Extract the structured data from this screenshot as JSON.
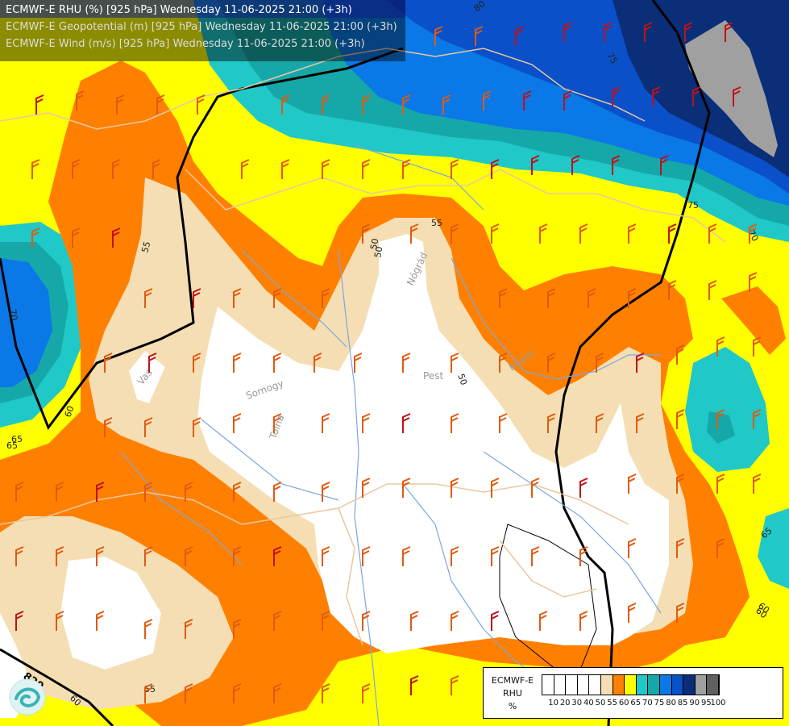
{
  "header": {
    "line1": "ECMWF-E RHU (%) [925 hPa] Wednesday 11-06-2025 21:00 (+3h)",
    "line2": "ECMWF-E Geopotential (m) [925 hPa] Wednesday 11-06-2025 21:00 (+3h)",
    "line3": "ECMWF-E Wind (m/s) [925 hPa] Wednesday 11-06-2025 21:00 (+3h)"
  },
  "legend": {
    "title1": "ECMWF-E",
    "title2": "RHU",
    "title3": "%",
    "ticks": [
      "10",
      "20",
      "30",
      "40",
      "50",
      "55",
      "60",
      "65",
      "70",
      "75",
      "80",
      "85",
      "90",
      "95",
      "100"
    ],
    "colors": [
      "#ffffff",
      "#ffffff",
      "#ffffff",
      "#ffffff",
      "#ffffff",
      "#f5deb3",
      "#ff8000",
      "#ffff00",
      "#20c8c8",
      "#16a8a8",
      "#0a78e6",
      "#0a50c8",
      "#0a2e78",
      "#a0a0a0",
      "#606060"
    ]
  },
  "contour_labels": [
    "80",
    "75",
    "75",
    "70",
    "55",
    "55",
    "50",
    "50",
    "60",
    "65",
    "65",
    "60",
    "55",
    "70",
    "60",
    "50",
    "65",
    "60",
    "820"
  ],
  "place_labels": [
    "Pest",
    "Nógrád",
    "Békés",
    "Somogy",
    "Tolna",
    "Vas"
  ],
  "colors": {
    "white": "#ffffff",
    "tan": "#f5deb3",
    "orange": "#ff8000",
    "yellow": "#ffff00",
    "cyan": "#20c8c8",
    "teal": "#16a8a8",
    "blue": "#0a78e6",
    "darkblue": "#0a50c8",
    "navy": "#0a2e78",
    "grey": "#a0a0a0",
    "barb": "#e05a10",
    "barb_red": "#c0101a",
    "border": "#e8c8a0",
    "river": "#7aa7e0"
  }
}
